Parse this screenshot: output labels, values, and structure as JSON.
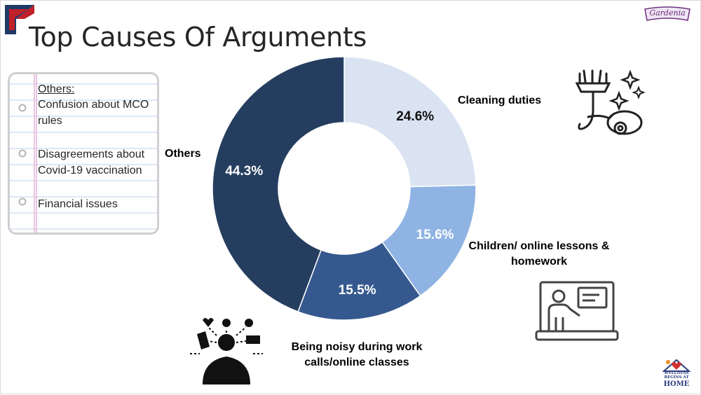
{
  "slide": {
    "title": "Top Causes Of Arguments",
    "brand_logo_text": "Gardenia",
    "wellness_logo": {
      "line1": "WELLNESS",
      "line2": "BEGINS AT",
      "line3": "HOME"
    }
  },
  "notepad": {
    "heading": "Others:",
    "items": [
      "Confusion about MCO rules",
      "Disagreements about Covid-19 vaccination",
      "Financial issues"
    ]
  },
  "colors": {
    "cleaning": "#dae3f1",
    "children": "#8fb3e3",
    "noisy": "#35598f",
    "others": "#253e5f"
  },
  "chart_data": {
    "type": "pie",
    "donut": true,
    "slices": [
      {
        "label": "Cleaning duties",
        "value": 24.6,
        "display": "24.6%"
      },
      {
        "label": "Children/ online lessons & homework",
        "value": 15.6,
        "display": "15.6%"
      },
      {
        "label": "Being noisy during work calls/online classes",
        "value": 15.5,
        "display": "15.5%"
      },
      {
        "label": "Others",
        "value": 44.3,
        "display": "44.3%"
      }
    ]
  },
  "icons": [
    "vacuum-cleaner-icon",
    "online-teacher-icon",
    "distracted-person-icon"
  ]
}
